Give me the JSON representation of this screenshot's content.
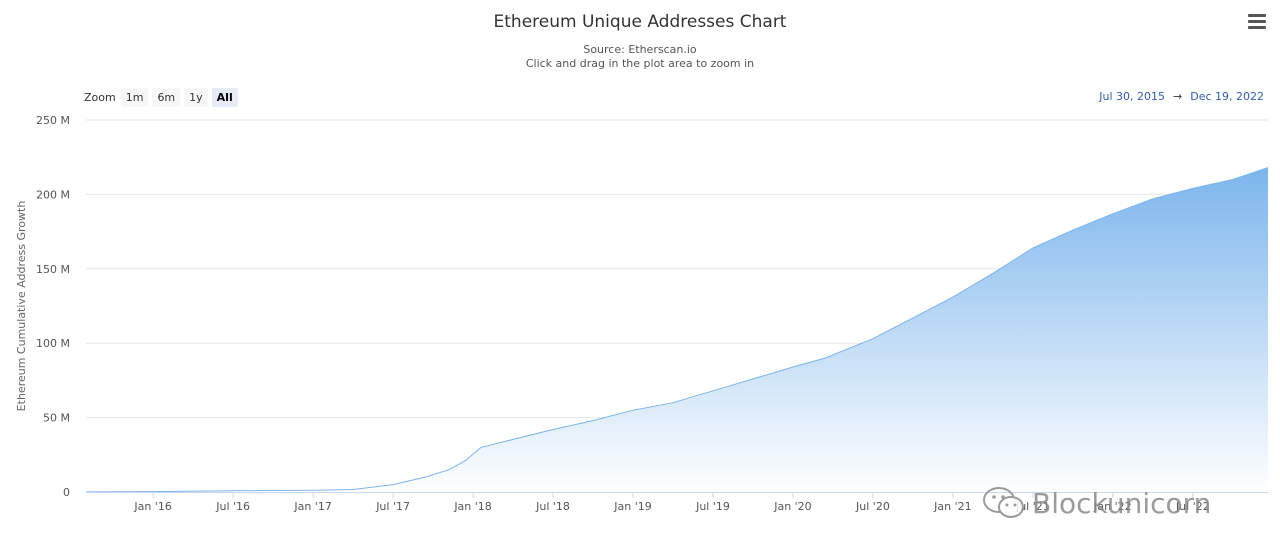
{
  "header": {
    "title": "Ethereum Unique Addresses Chart",
    "source": "Source: Etherscan.io",
    "hint": "Click and drag in the plot area to zoom in"
  },
  "zoom": {
    "label": "Zoom",
    "buttons": [
      "1m",
      "6m",
      "1y",
      "All"
    ],
    "active": "All"
  },
  "range": {
    "from": "Jul 30, 2015",
    "separator": "→",
    "to": "Dec 19, 2022"
  },
  "watermark": {
    "text": "Blockunicorn"
  },
  "colors": {
    "area_top": "#7cb5ec",
    "area_bottom": "#ffffff",
    "line": "#7cb5ec",
    "grid": "#e6e6e6"
  },
  "chart_data": {
    "type": "area",
    "title": "Ethereum Unique Addresses Chart",
    "subtitle": "Source: Etherscan.io",
    "xlabel": "",
    "ylabel": "Ethereum Cumulative Address Growth",
    "xlim": [
      2015.58,
      2022.97
    ],
    "ylim": [
      0,
      250
    ],
    "y_unit": "M",
    "y_ticks": [
      0,
      50,
      100,
      150,
      200,
      250
    ],
    "y_tick_labels": [
      "0",
      "50 M",
      "100 M",
      "150 M",
      "200 M",
      "250 M"
    ],
    "x_ticks": [
      2016.0,
      2016.5,
      2017.0,
      2017.5,
      2018.0,
      2018.5,
      2019.0,
      2019.5,
      2020.0,
      2020.5,
      2021.0,
      2021.5,
      2022.0,
      2022.5
    ],
    "x_tick_labels": [
      "Jan '16",
      "Jul '16",
      "Jan '17",
      "Jul '17",
      "Jan '18",
      "Jul '18",
      "Jan '19",
      "Jul '19",
      "Jan '20",
      "Jul '20",
      "Jan '21",
      "Jul '21",
      "Jan '22",
      "Jul '22"
    ],
    "grid": true,
    "legend": "none",
    "series": [
      {
        "name": "Ethereum Cumulative Address Growth",
        "x": [
          2015.58,
          2016.0,
          2016.5,
          2017.0,
          2017.25,
          2017.5,
          2017.7,
          2017.85,
          2017.95,
          2018.05,
          2018.2,
          2018.5,
          2018.75,
          2019.0,
          2019.25,
          2019.5,
          2019.75,
          2020.0,
          2020.2,
          2020.5,
          2020.75,
          2021.0,
          2021.25,
          2021.5,
          2021.75,
          2022.0,
          2022.25,
          2022.5,
          2022.75,
          2022.97
        ],
        "y": [
          0.1,
          0.3,
          0.8,
          1.2,
          1.7,
          5,
          10,
          15,
          21,
          30,
          34,
          42,
          48,
          55,
          60,
          68,
          76,
          84,
          90,
          103,
          117,
          131,
          147,
          164,
          176,
          187,
          197,
          204,
          210,
          218
        ]
      }
    ]
  }
}
